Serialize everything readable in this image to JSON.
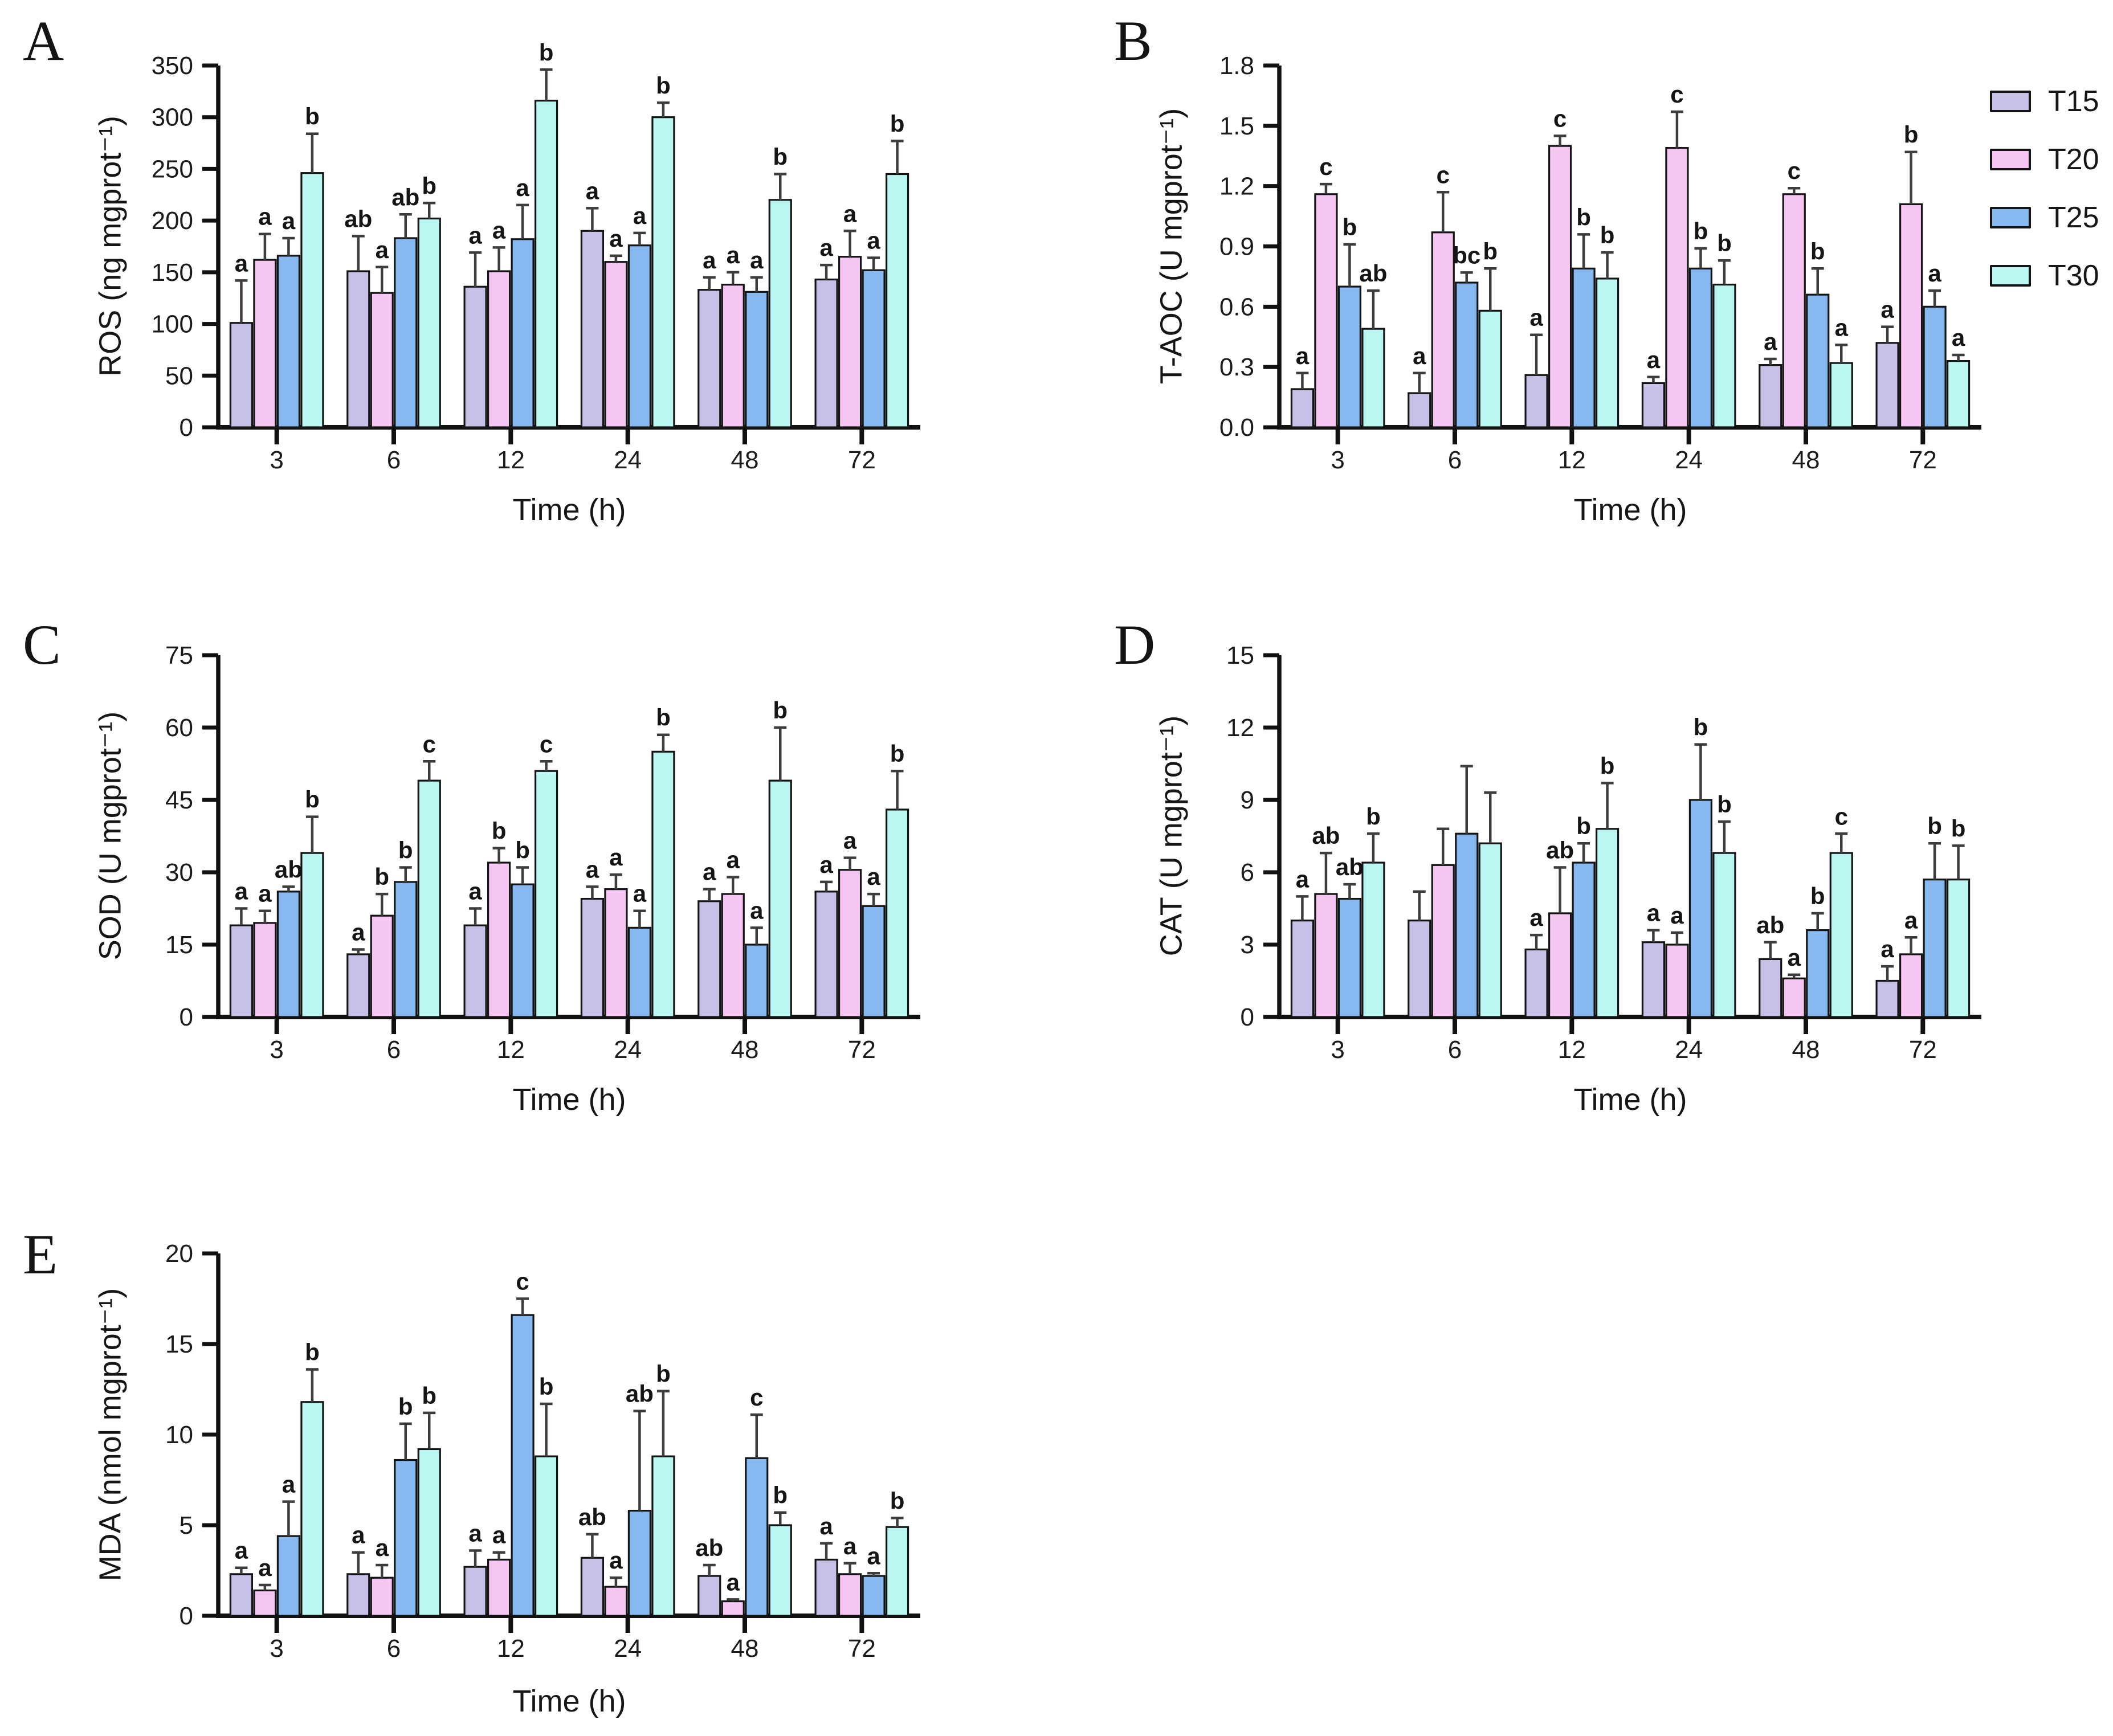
{
  "legend": {
    "items": [
      {
        "label": "T15",
        "color": "#c7c1e7"
      },
      {
        "label": "T20",
        "color": "#f4c6f1"
      },
      {
        "label": "T25",
        "color": "#87b9f0"
      },
      {
        "label": "T30",
        "color": "#baf7f1"
      }
    ]
  },
  "style": {
    "bar_outline": "#141414",
    "error_color": "#3d3d3d",
    "axis_color": "#111111",
    "text_color": "#1b1b1b"
  },
  "chart_data": [
    {
      "id": "A",
      "type": "bar",
      "title": "",
      "xlabel": "Time (h)",
      "ylabel": "ROS (ng mgprot⁻¹)",
      "categories": [
        "3",
        "6",
        "12",
        "24",
        "48",
        "72"
      ],
      "ylim": [
        0,
        350
      ],
      "ytick_step": 50,
      "ytick_decimals": 0,
      "legend_position": "outside-top-right",
      "grid": false,
      "series": [
        {
          "name": "T15",
          "color": "#c7c1e7",
          "values": [
            101,
            151,
            136,
            190,
            133,
            143
          ],
          "errors": [
            41,
            34,
            33,
            22,
            12,
            14
          ],
          "letters": [
            "a",
            "ab",
            "a",
            "a",
            "a",
            "a"
          ]
        },
        {
          "name": "T20",
          "color": "#f4c6f1",
          "values": [
            162,
            130,
            151,
            160,
            138,
            165
          ],
          "errors": [
            25,
            25,
            23,
            6,
            12,
            25
          ],
          "letters": [
            "a",
            "a",
            "a",
            "a",
            "a",
            "a"
          ]
        },
        {
          "name": "T25",
          "color": "#87b9f0",
          "values": [
            166,
            183,
            182,
            176,
            131,
            152
          ],
          "errors": [
            17,
            23,
            33,
            12,
            14,
            12
          ],
          "letters": [
            "a",
            "ab",
            "a",
            "a",
            "a",
            "a"
          ]
        },
        {
          "name": "T30",
          "color": "#baf7f1",
          "values": [
            246,
            202,
            316,
            300,
            220,
            245
          ],
          "errors": [
            38,
            15,
            30,
            14,
            25,
            32
          ],
          "letters": [
            "b",
            "b",
            "b",
            "b",
            "b",
            "b"
          ]
        }
      ]
    },
    {
      "id": "B",
      "type": "bar",
      "title": "",
      "xlabel": "Time (h)",
      "ylabel": "T-AOC (U mgprot⁻¹)",
      "categories": [
        "3",
        "6",
        "12",
        "24",
        "48",
        "72"
      ],
      "ylim": [
        0,
        1.8
      ],
      "ytick_step": 0.3,
      "ytick_decimals": 1,
      "legend_position": "outside-top-right",
      "grid": false,
      "series": [
        {
          "name": "T15",
          "color": "#c7c1e7",
          "values": [
            0.19,
            0.17,
            0.26,
            0.22,
            0.31,
            0.42
          ],
          "errors": [
            0.08,
            0.1,
            0.2,
            0.03,
            0.03,
            0.08
          ],
          "letters": [
            "a",
            "a",
            "a",
            "a",
            "a",
            "a"
          ]
        },
        {
          "name": "T20",
          "color": "#f4c6f1",
          "values": [
            1.16,
            0.97,
            1.4,
            1.39,
            1.16,
            1.11
          ],
          "errors": [
            0.05,
            0.2,
            0.05,
            0.18,
            0.03,
            0.26
          ],
          "letters": [
            "c",
            "c",
            "c",
            "c",
            "c",
            "b"
          ]
        },
        {
          "name": "T25",
          "color": "#87b9f0",
          "values": [
            0.7,
            0.72,
            0.79,
            0.79,
            0.66,
            0.6
          ],
          "errors": [
            0.21,
            0.05,
            0.17,
            0.1,
            0.13,
            0.08
          ],
          "letters": [
            "b",
            "bc",
            "b",
            "b",
            "b",
            "a"
          ]
        },
        {
          "name": "T30",
          "color": "#baf7f1",
          "values": [
            0.49,
            0.58,
            0.74,
            0.71,
            0.32,
            0.33
          ],
          "errors": [
            0.19,
            0.21,
            0.13,
            0.12,
            0.09,
            0.03
          ],
          "letters": [
            "ab",
            "b",
            "b",
            "b",
            "a",
            "a"
          ]
        }
      ]
    },
    {
      "id": "C",
      "type": "bar",
      "title": "",
      "xlabel": "Time (h)",
      "ylabel": "SOD (U mgprot⁻¹)",
      "categories": [
        "3",
        "6",
        "12",
        "24",
        "48",
        "72"
      ],
      "ylim": [
        0,
        75
      ],
      "ytick_step": 15,
      "ytick_decimals": 0,
      "legend_position": "none",
      "grid": false,
      "series": [
        {
          "name": "T15",
          "color": "#c7c1e7",
          "values": [
            19,
            13,
            19,
            24.5,
            24,
            26
          ],
          "errors": [
            3.5,
            1,
            3.5,
            2.5,
            2.5,
            2
          ],
          "letters": [
            "a",
            "a",
            "a",
            "a",
            "a",
            "a"
          ]
        },
        {
          "name": "T20",
          "color": "#f4c6f1",
          "values": [
            19.5,
            21,
            32,
            26.5,
            25.5,
            30.5
          ],
          "errors": [
            2.5,
            4.5,
            3,
            3,
            3.5,
            2.5
          ],
          "letters": [
            "a",
            "b",
            "b",
            "a",
            "a",
            "a"
          ]
        },
        {
          "name": "T25",
          "color": "#87b9f0",
          "values": [
            26,
            28,
            27.5,
            18.5,
            15,
            23
          ],
          "errors": [
            1,
            3,
            3.5,
            3.5,
            3.5,
            2.5
          ],
          "letters": [
            "ab",
            "b",
            "b",
            "a",
            "a",
            "a"
          ]
        },
        {
          "name": "T30",
          "color": "#baf7f1",
          "values": [
            34,
            49,
            51,
            55,
            49,
            43
          ],
          "errors": [
            7.5,
            4,
            2,
            3.5,
            11,
            8
          ],
          "letters": [
            "b",
            "c",
            "c",
            "b",
            "b",
            "b"
          ]
        }
      ]
    },
    {
      "id": "D",
      "type": "bar",
      "title": "",
      "xlabel": "Time (h)",
      "ylabel": "CAT (U mgprot⁻¹)",
      "categories": [
        "3",
        "6",
        "12",
        "24",
        "48",
        "72"
      ],
      "ylim": [
        0,
        15
      ],
      "ytick_step": 3,
      "ytick_decimals": 0,
      "legend_position": "none",
      "grid": false,
      "series": [
        {
          "name": "T15",
          "color": "#c7c1e7",
          "values": [
            4.0,
            4.0,
            2.8,
            3.1,
            2.4,
            1.5
          ],
          "errors": [
            1.0,
            1.2,
            0.6,
            0.5,
            0.7,
            0.6
          ],
          "letters": [
            "a",
            "",
            "a",
            "a",
            "ab",
            "a"
          ]
        },
        {
          "name": "T20",
          "color": "#f4c6f1",
          "values": [
            5.1,
            6.3,
            4.3,
            3.0,
            1.6,
            2.6
          ],
          "errors": [
            1.7,
            1.5,
            1.9,
            0.5,
            0.15,
            0.7
          ],
          "letters": [
            "ab",
            "",
            "ab",
            "a",
            "a",
            "a"
          ]
        },
        {
          "name": "T25",
          "color": "#87b9f0",
          "values": [
            4.9,
            7.6,
            6.4,
            9.0,
            3.6,
            5.7
          ],
          "errors": [
            0.6,
            2.8,
            0.8,
            2.3,
            0.7,
            1.5
          ],
          "letters": [
            "ab",
            "",
            "b",
            "b",
            "b",
            "b"
          ]
        },
        {
          "name": "T30",
          "color": "#baf7f1",
          "values": [
            6.4,
            7.2,
            7.8,
            6.8,
            6.8,
            5.7
          ],
          "errors": [
            1.2,
            2.1,
            1.9,
            1.3,
            0.8,
            1.4
          ],
          "letters": [
            "b",
            "",
            "b",
            "b",
            "c",
            "b"
          ]
        }
      ]
    },
    {
      "id": "E",
      "type": "bar",
      "title": "",
      "xlabel": "Time (h)",
      "ylabel": "MDA (nmol mgprot⁻¹)",
      "categories": [
        "3",
        "6",
        "12",
        "24",
        "48",
        "72"
      ],
      "ylim": [
        0,
        20
      ],
      "ytick_step": 5,
      "ytick_decimals": 0,
      "legend_position": "none",
      "grid": false,
      "series": [
        {
          "name": "T15",
          "color": "#c7c1e7",
          "values": [
            2.3,
            2.3,
            2.7,
            3.2,
            2.2,
            3.1
          ],
          "errors": [
            0.35,
            1.2,
            0.9,
            1.3,
            0.6,
            0.9
          ],
          "letters": [
            "a",
            "a",
            "a",
            "ab",
            "ab",
            "a"
          ]
        },
        {
          "name": "T20",
          "color": "#f4c6f1",
          "values": [
            1.4,
            2.1,
            3.1,
            1.6,
            0.8,
            2.3
          ],
          "errors": [
            0.3,
            0.7,
            0.4,
            0.5,
            0.1,
            0.6
          ],
          "letters": [
            "a",
            "a",
            "a",
            "a",
            "a",
            "a"
          ]
        },
        {
          "name": "T25",
          "color": "#87b9f0",
          "values": [
            4.4,
            8.6,
            16.6,
            5.8,
            8.7,
            2.2
          ],
          "errors": [
            1.9,
            2.0,
            0.9,
            5.5,
            2.4,
            0.15
          ],
          "letters": [
            "a",
            "b",
            "c",
            "ab",
            "c",
            "a"
          ]
        },
        {
          "name": "T30",
          "color": "#baf7f1",
          "values": [
            11.8,
            9.2,
            8.8,
            8.8,
            5.0,
            4.9
          ],
          "errors": [
            1.8,
            2.0,
            2.9,
            3.6,
            0.7,
            0.5
          ],
          "letters": [
            "b",
            "b",
            "b",
            "b",
            "b",
            "b"
          ]
        }
      ]
    }
  ]
}
